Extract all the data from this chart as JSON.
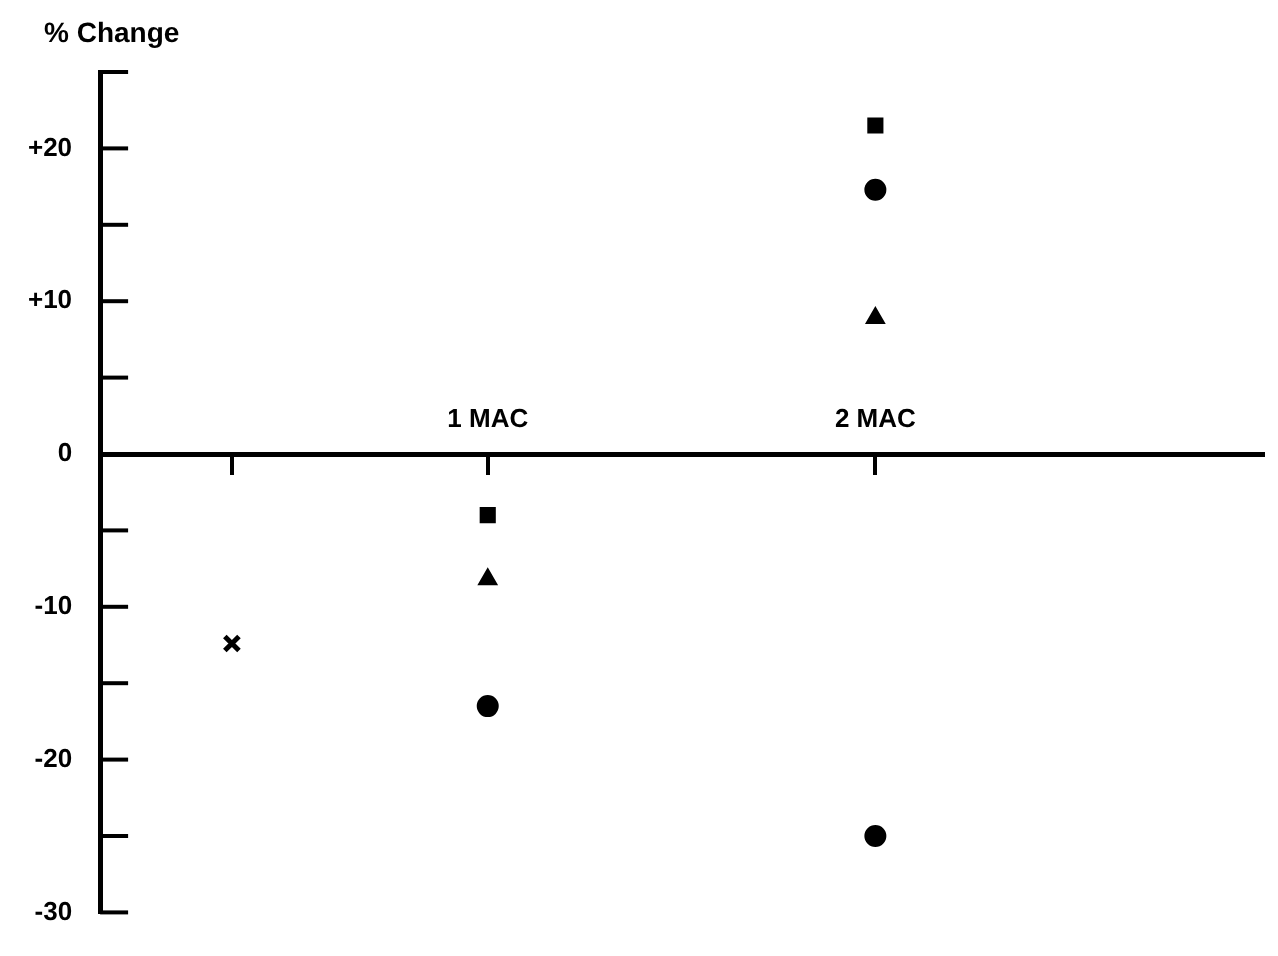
{
  "chart_data": {
    "type": "scatter",
    "ylabel": "% Change",
    "xlim": [
      0,
      3
    ],
    "ylim": [
      -30,
      25
    ],
    "xticks": [
      {
        "value": 0.34,
        "label": null
      },
      {
        "value": 1,
        "label": "1 MAC"
      },
      {
        "value": 2,
        "label": "2 MAC"
      }
    ],
    "yticks": [
      {
        "value": 25,
        "label": null
      },
      {
        "value": 20,
        "label": "+20"
      },
      {
        "value": 15,
        "label": null
      },
      {
        "value": 10,
        "label": "+10"
      },
      {
        "value": 5,
        "label": null
      },
      0,
      {
        "value": -5,
        "label": null
      },
      -10,
      {
        "value": -15,
        "label": null
      },
      -20,
      {
        "value": -25,
        "label": null
      },
      -30
    ],
    "grid": false,
    "legend": false,
    "series": [
      {
        "color": "#000000",
        "marker": "cross",
        "x": [
          0.34
        ],
        "values": [
          -12.4
        ]
      },
      {
        "color": "#000000",
        "marker": "square",
        "x": [
          1,
          2
        ],
        "values": [
          -4,
          21.5
        ]
      },
      {
        "color": "#000000",
        "marker": "triangle",
        "x": [
          1,
          2
        ],
        "values": [
          -8.2,
          8.9
        ]
      },
      {
        "color": "#000000",
        "marker": "circle",
        "x": [
          1,
          2
        ],
        "values": [
          -16.5,
          -25
        ]
      },
      {
        "color": "#000000",
        "marker": "circle",
        "x": [
          2
        ],
        "values": [
          17.3
        ]
      }
    ]
  }
}
